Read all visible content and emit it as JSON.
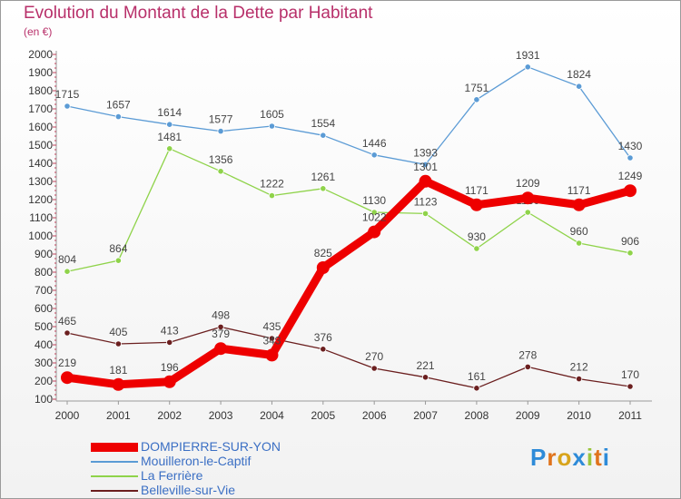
{
  "header": {
    "title": "Evolution du Montant de la Dette par Habitant",
    "subtitle": "(en €)"
  },
  "chart_data": {
    "type": "line",
    "title": "Evolution du Montant de la Dette par Habitant",
    "subtitle": "(en €)",
    "x": [
      "2000",
      "2001",
      "2002",
      "2003",
      "2004",
      "2005",
      "2006",
      "2007",
      "2008",
      "2009",
      "2010",
      "2011"
    ],
    "ylim": [
      100,
      2000
    ],
    "yticks": [
      100,
      200,
      300,
      400,
      500,
      600,
      700,
      800,
      900,
      1000,
      1100,
      1200,
      1300,
      1400,
      1500,
      1600,
      1700,
      1800,
      1900,
      2000
    ],
    "grid": false,
    "legend_position": "bottom-left",
    "series": [
      {
        "name": "DOMPIERRE-SUR-YON",
        "color": "#ee0000",
        "values": [
          219,
          181,
          196,
          379,
          343,
          825,
          1022,
          1301,
          1171,
          1209,
          1171,
          1249
        ]
      },
      {
        "name": "Mouilleron-le-Captif",
        "color": "#5b9bd5",
        "values": [
          1715,
          1657,
          1614,
          1577,
          1605,
          1554,
          1446,
          1393,
          1751,
          1931,
          1824,
          1430
        ]
      },
      {
        "name": "La Ferrière",
        "color": "#8fd34a",
        "values": [
          804,
          864,
          1481,
          1356,
          1222,
          1261,
          1130,
          1123,
          930,
          1130,
          960,
          906
        ]
      },
      {
        "name": "Belleville-sur-Vie",
        "color": "#6b1f1f",
        "values": [
          465,
          405,
          413,
          498,
          435,
          376,
          270,
          221,
          161,
          278,
          212,
          170
        ]
      }
    ]
  },
  "logo": {
    "text": "Proxiti",
    "letters": [
      "P",
      "r",
      "o",
      "x",
      "i",
      "t",
      "i"
    ],
    "colors": [
      "#2e8bd8",
      "#e0731c",
      "#d8a41c",
      "#2e8bd8",
      "#9bc53d",
      "#e0731c",
      "#2e8bd8"
    ]
  }
}
